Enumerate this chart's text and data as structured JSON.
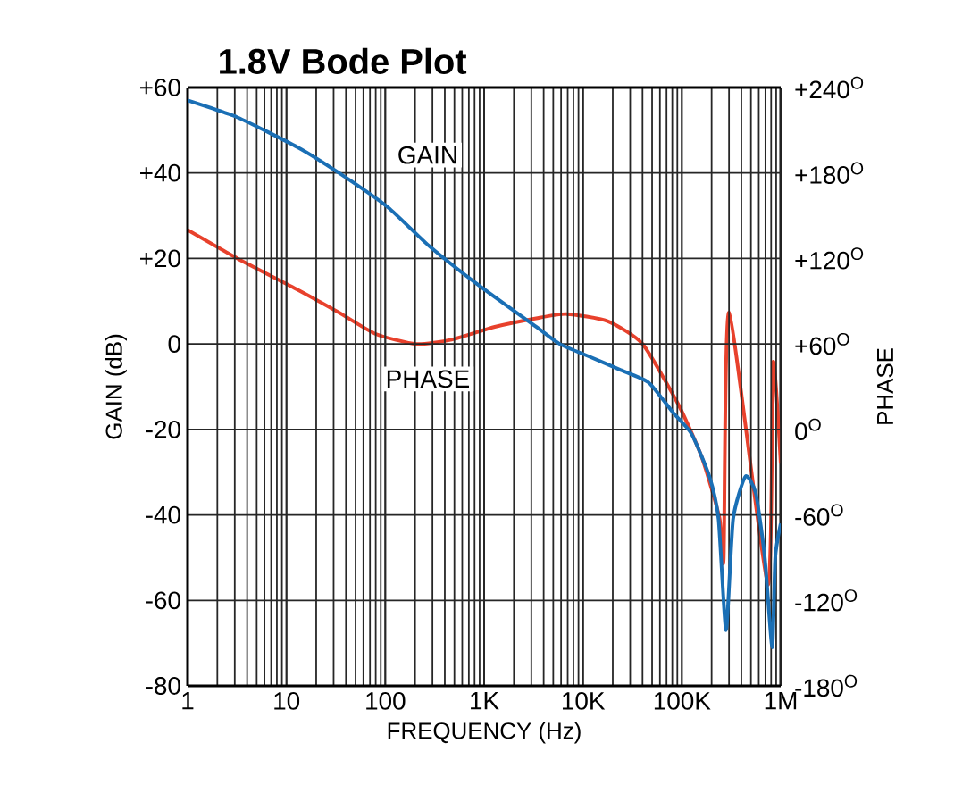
{
  "chart_data": {
    "type": "line",
    "title": "1.8V Bode Plot",
    "xlabel": "FREQUENCY (Hz)",
    "ylabel": "GAIN (dB)",
    "y2label": "PHASE",
    "log": "x",
    "grid": true,
    "marker": "none",
    "line_style": "solid",
    "xlim": [
      1,
      1000000
    ],
    "xticks": [
      1,
      10,
      100,
      {
        "value": 1000,
        "label": "1K"
      },
      {
        "value": 10000,
        "label": "10K"
      },
      {
        "value": 100000,
        "label": "100K"
      },
      {
        "value": 1000000,
        "label": "1M"
      }
    ],
    "ylim": [
      -80,
      60
    ],
    "yticks": [
      -80,
      -60,
      -40,
      -20,
      0,
      {
        "value": 20,
        "label": "+20"
      },
      {
        "value": 40,
        "label": "+40"
      },
      {
        "value": 60,
        "label": "+60"
      }
    ],
    "y2lim": [
      -180,
      240
    ],
    "y2ticks": [
      {
        "value": -180,
        "label": "-180$^{O}$"
      },
      {
        "value": -120,
        "label": "-120$^{O}$"
      },
      {
        "value": -60,
        "label": "-60$^{O}$"
      },
      {
        "value": 0,
        "label": "0$^{O}$"
      },
      {
        "value": 60,
        "label": "+60$^{O}$"
      },
      {
        "value": 120,
        "label": "+120$^{O}$"
      },
      {
        "value": 180,
        "label": "+180$^{O}$"
      },
      {
        "value": 240,
        "label": "+240$^{O}$"
      }
    ],
    "series": [
      {
        "color": "#1a6fb5",
        "x": [
          1,
          3.2,
          13,
          34,
          106,
          275,
          850,
          3360,
          5800,
          11700,
          23500,
          46000,
          81000,
          125000,
          190000,
          235000,
          280000,
          330000,
          440000,
          560000,
          690000,
          820000,
          880000,
          1000000
        ],
        "values": [
          57,
          53,
          46,
          40,
          32,
          23,
          14,
          4,
          0,
          -3,
          -6,
          -9,
          -16,
          -21,
          -31,
          -41,
          -67,
          -41,
          -31,
          -35,
          -50,
          -71,
          -50,
          -42
        ]
      },
      {
        "color": "#e8412c",
        "axis": "y2",
        "x": [
          1,
          3.2,
          13,
          34,
          80,
          205,
          470,
          1280,
          3360,
          6800,
          17700,
          40000,
          93000,
          160000,
          240000,
          265000,
          300000,
          740000,
          840000,
          1000000
        ],
        "values": [
          140,
          120,
          98,
          82,
          67,
          60,
          63,
          72,
          78,
          81,
          76,
          60,
          17,
          -20,
          -62,
          -91,
          82,
          -109,
          47,
          -24
        ]
      }
    ],
    "annotations": [
      "GAIN",
      "PHASE"
    ]
  }
}
